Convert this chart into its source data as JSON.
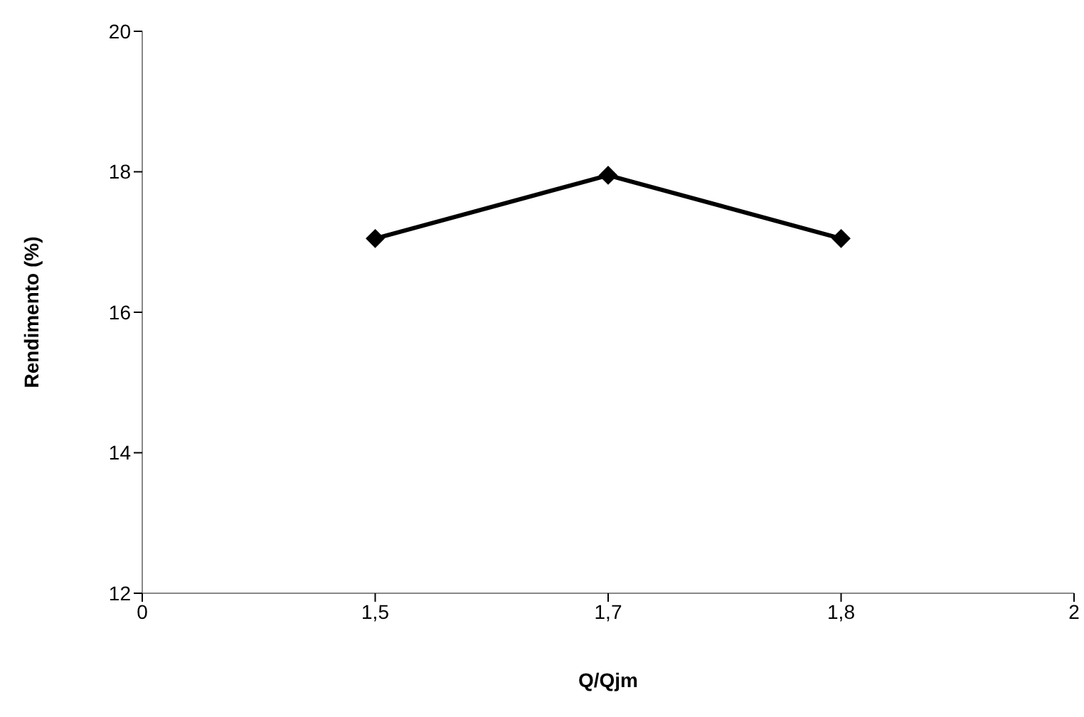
{
  "chart_data": {
    "type": "line",
    "xlabel": "Q/Qjm",
    "ylabel": "Rendimento (%)",
    "categories": [
      "0",
      "1,5",
      "1,7",
      "1,8",
      "2"
    ],
    "series": [
      {
        "color": "#000000",
        "values": [
          null,
          17.05,
          17.95,
          17.05,
          null
        ]
      }
    ],
    "ylim": [
      12,
      20
    ],
    "yticks": [
      12,
      14,
      16,
      18,
      20
    ],
    "grid": false,
    "legend": false,
    "marker": "diamond",
    "line_style": "solid"
  }
}
